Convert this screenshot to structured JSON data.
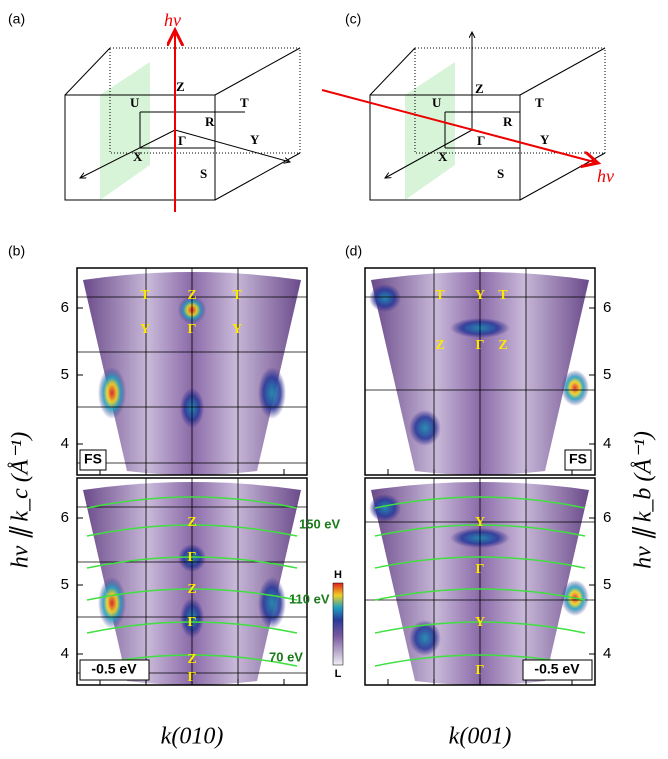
{
  "panel_a": {
    "label": "(a)",
    "hv": "hν",
    "points": {
      "Z": "Z",
      "U": "U",
      "T": "T",
      "R": "R",
      "G": "Γ",
      "Y": "Y",
      "X": "X",
      "S": "S"
    }
  },
  "panel_c": {
    "label": "(c)",
    "hv": "hν",
    "points": {
      "Z": "Z",
      "U": "U",
      "T": "T",
      "R": "R",
      "G": "Γ",
      "Y": "Y",
      "X": "X",
      "S": "S"
    }
  },
  "panel_b": {
    "label": "(b)",
    "fs_points": [
      "T",
      "Z",
      "T",
      "Y",
      "Γ",
      "Y"
    ],
    "fs_tag": "FS",
    "cut_points": [
      "Z",
      "Γ",
      "Z",
      "Γ",
      "Z",
      "Γ"
    ],
    "energies": [
      "150 eV",
      "110 eV",
      "70 eV"
    ],
    "cut_tag": "-0.5 eV",
    "y_axis_label": "hν ∥ k_c (Å⁻¹)",
    "x_axis_label": "k(010)"
  },
  "panel_d": {
    "label": "(d)",
    "fs_points": [
      "T",
      "Y",
      "T",
      "Z",
      "Γ",
      "Z"
    ],
    "fs_tag": "FS",
    "cut_points": [
      "Y",
      "Γ",
      "Y",
      "Γ"
    ],
    "cut_tag": "-0.5 eV",
    "y_axis_label": "hν ∥ k_b (Å⁻¹)",
    "x_axis_label": "k(001)"
  },
  "ticks": [
    6,
    5,
    4
  ],
  "colorbar": {
    "high": "H",
    "low": "L"
  }
}
